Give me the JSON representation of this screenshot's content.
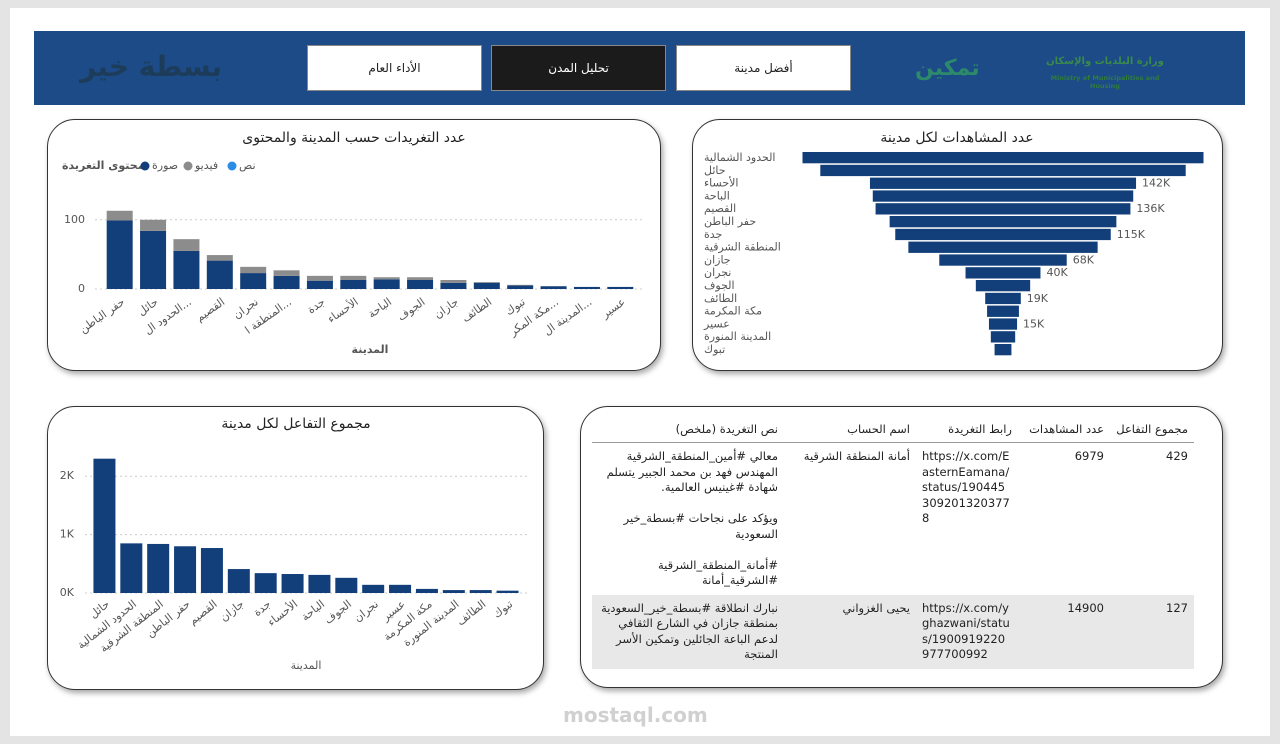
{
  "header": {
    "logo": "بسطة خير",
    "nav": [
      "الأداء العام",
      "تحليل المدن",
      "أفضل مدينة"
    ],
    "partner_logo": "تمكين",
    "ministry_ar": "وزارة البلديات والإسكان",
    "ministry_en": "Ministry of Municipalities and Housing"
  },
  "chart_data": [
    {
      "type": "stacked_bar",
      "title": "عدد التغريدات حسب المدينة والمحتوى",
      "legend_title": "محتوى التغريدة",
      "x_label": "المدينة",
      "categories": [
        "حفر الباطن",
        "حائل",
        "الحدود ال...",
        "القصيم",
        "نجران",
        "المنطقة ا...",
        "جدة",
        "الأحساء",
        "الباحة",
        "الجوف",
        "جازان",
        "الطائف",
        "تبوك",
        "مكة المكر...",
        "المدينة ال...",
        "عسير"
      ],
      "series": [
        {
          "name": "صورة",
          "color": "#123f7a",
          "values": [
            99,
            84,
            55,
            41,
            23,
            19,
            12,
            13,
            14,
            13,
            9,
            9,
            5,
            4,
            3,
            3
          ]
        },
        {
          "name": "فيديو",
          "color": "#8c8c8c",
          "values": [
            14,
            16,
            17,
            8,
            9,
            8,
            7,
            6,
            3,
            4,
            4,
            1,
            1,
            0,
            0,
            0
          ]
        },
        {
          "name": "نص",
          "color": "#2b8ce6",
          "values": [
            0,
            0,
            0,
            0,
            0,
            0,
            0,
            0,
            0,
            0,
            0,
            0,
            0,
            0,
            0,
            0
          ]
        }
      ],
      "ylim": [
        0,
        130
      ],
      "yticks": [
        0,
        100
      ],
      "grid": true
    },
    {
      "type": "funnel",
      "title": "عدد المشاهدات لكل مدينة",
      "color": "#123f7a",
      "categories": [
        "الحدود الشمالية",
        "حائل",
        "الأحساء",
        "الباحة",
        "القصيم",
        "حفر الباطن",
        "جدة",
        "المنطقة الشرقية",
        "جازان",
        "نجران",
        "الجوف",
        "الطائف",
        "مكة المكرمة",
        "عسير",
        "المدينة المنورة",
        "تبوك"
      ],
      "values": [
        214000,
        195000,
        142000,
        139000,
        136000,
        121000,
        115000,
        101000,
        68000,
        40000,
        29000,
        19000,
        17000,
        15000,
        13000,
        9000
      ],
      "value_labels": [
        null,
        null,
        "142K",
        null,
        "136K",
        null,
        "115K",
        null,
        "68K",
        "40K",
        null,
        "19K",
        null,
        "15K",
        null,
        null
      ]
    },
    {
      "type": "bar",
      "title": "مجموع التفاعل لكل مدينة",
      "x_label": "المدينة",
      "color": "#123f7a",
      "categories": [
        "حائل",
        "الحدود الشمالية",
        "المنطقة الشرقية",
        "حفر الباطن",
        "القصيم",
        "جازان",
        "جدة",
        "الأحساء",
        "الباحة",
        "الجوف",
        "نجران",
        "عسير",
        "مكة المكرمة",
        "المدينة المنورة",
        "الطائف",
        "تبوك"
      ],
      "values": [
        2300,
        850,
        840,
        800,
        770,
        410,
        340,
        325,
        310,
        260,
        140,
        140,
        70,
        50,
        50,
        40
      ],
      "ylim": [
        0,
        2500
      ],
      "yticks": [
        {
          "value": 0,
          "label": "0K"
        },
        {
          "value": 1000,
          "label": "1K"
        },
        {
          "value": 2000,
          "label": "2K"
        }
      ],
      "grid": true
    }
  ],
  "table": {
    "columns": [
      "مجموع التفاعل",
      "عدد المشاهدات",
      "رابط التغريدة",
      "اسم الحساب",
      "نص التغريدة (ملخص)"
    ],
    "rows": [
      [
        429,
        6979,
        "https://x.com/EasternEamana/status/1904453092013203778",
        "أمانة المنطقة الشرقية",
        "معالي #أمين_المنطقة_الشرقية المهندس فهد بن محمد الجبير يتسلم شهادة #غينيس العالمية.\n\nويؤكد على نجاحات #بسطة_خير السعودية\n\n#أمانة_المنطقة_الشرقية #الشرقية_أمانة"
      ],
      [
        127,
        14900,
        "https://x.com/yghazwani/status/1900919220977700992",
        "يحيى الغزواني",
        "نبارك انطلاقة #بسطة_خير_السعودية بمنطقة جازان في الشارع الثقافي لدعم الباعة الجائلين وتمكين الأسر المنتجة"
      ]
    ]
  },
  "watermark": "mostaql.com"
}
